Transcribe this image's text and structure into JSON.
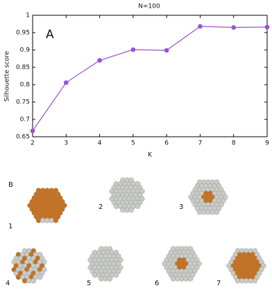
{
  "chart_data": {
    "type": "line",
    "title": "N=100",
    "panel_label": "A",
    "x_label": "K",
    "y_label": "Silhouette score",
    "x": [
      2,
      3,
      4,
      5,
      6,
      7,
      8,
      9
    ],
    "series": [
      {
        "name": "Silhouette score",
        "color": "#9b4fd6",
        "values": [
          0.667,
          0.806,
          0.87,
          0.901,
          0.899,
          0.968,
          0.965,
          0.966
        ]
      }
    ],
    "xlim": [
      2,
      9
    ],
    "xticks": [
      2,
      3,
      4,
      5,
      6,
      7,
      8,
      9
    ],
    "ylim": [
      0.65,
      1
    ],
    "yticks": [
      0.65,
      0.7,
      0.75,
      0.8,
      0.85,
      0.9,
      0.95,
      1
    ]
  },
  "panel_b": {
    "label": "B",
    "items": [
      "1",
      "2",
      "3",
      "4",
      "5",
      "6",
      "7"
    ]
  }
}
